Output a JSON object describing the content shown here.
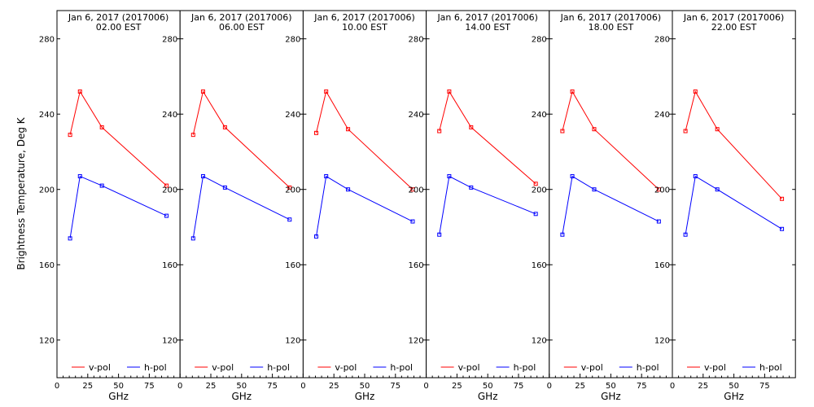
{
  "figure": {
    "ylabel": "Brightness Temperature, Deg K",
    "xlabel": "GHz"
  },
  "chart_data": [
    {
      "type": "line",
      "title": "Jan  6, 2017 (2017006)",
      "subtitle": "02.00 EST",
      "xlabel": "GHz",
      "ylabel": "Brightness Temperature, Deg K",
      "xlim": [
        0,
        100
      ],
      "ylim": [
        100,
        295
      ],
      "xticks": [
        0,
        25,
        50,
        75
      ],
      "yticks": [
        120,
        160,
        200,
        240,
        280
      ],
      "legend": "bottom",
      "grid": false,
      "series": [
        {
          "name": "v-pol",
          "color": "#ff0000",
          "x": [
            10.65,
            18.7,
            36.5,
            89
          ],
          "y": [
            229,
            252,
            233,
            202
          ]
        },
        {
          "name": "h-pol",
          "color": "#0000ff",
          "x": [
            10.65,
            18.7,
            36.5,
            89
          ],
          "y": [
            174,
            207,
            202,
            186
          ]
        }
      ]
    },
    {
      "type": "line",
      "title": "Jan  6, 2017 (2017006)",
      "subtitle": "06.00 EST",
      "xlabel": "GHz",
      "xlim": [
        0,
        100
      ],
      "ylim": [
        100,
        295
      ],
      "xticks": [
        0,
        25,
        50,
        75
      ],
      "yticks": [
        120,
        160,
        200,
        240,
        280
      ],
      "legend": "bottom",
      "grid": false,
      "series": [
        {
          "name": "v-pol",
          "color": "#ff0000",
          "x": [
            10.65,
            18.7,
            36.5,
            89
          ],
          "y": [
            229,
            252,
            233,
            201
          ]
        },
        {
          "name": "h-pol",
          "color": "#0000ff",
          "x": [
            10.65,
            18.7,
            36.5,
            89
          ],
          "y": [
            174,
            207,
            201,
            184
          ]
        }
      ]
    },
    {
      "type": "line",
      "title": "Jan  6, 2017 (2017006)",
      "subtitle": "10.00 EST",
      "xlabel": "GHz",
      "xlim": [
        0,
        100
      ],
      "ylim": [
        100,
        295
      ],
      "xticks": [
        0,
        25,
        50,
        75
      ],
      "yticks": [
        120,
        160,
        200,
        240,
        280
      ],
      "legend": "bottom",
      "grid": false,
      "series": [
        {
          "name": "v-pol",
          "color": "#ff0000",
          "x": [
            10.65,
            18.7,
            36.5,
            89
          ],
          "y": [
            230,
            252,
            232,
            200
          ]
        },
        {
          "name": "h-pol",
          "color": "#0000ff",
          "x": [
            10.65,
            18.7,
            36.5,
            89
          ],
          "y": [
            175,
            207,
            200,
            183
          ]
        }
      ]
    },
    {
      "type": "line",
      "title": "Jan  6, 2017 (2017006)",
      "subtitle": "14.00 EST",
      "xlabel": "GHz",
      "xlim": [
        0,
        100
      ],
      "ylim": [
        100,
        295
      ],
      "xticks": [
        0,
        25,
        50,
        75
      ],
      "yticks": [
        120,
        160,
        200,
        240,
        280
      ],
      "legend": "bottom",
      "grid": false,
      "series": [
        {
          "name": "v-pol",
          "color": "#ff0000",
          "x": [
            10.65,
            18.7,
            36.5,
            89
          ],
          "y": [
            231,
            252,
            233,
            203
          ]
        },
        {
          "name": "h-pol",
          "color": "#0000ff",
          "x": [
            10.65,
            18.7,
            36.5,
            89
          ],
          "y": [
            176,
            207,
            201,
            187
          ]
        }
      ]
    },
    {
      "type": "line",
      "title": "Jan  6, 2017 (2017006)",
      "subtitle": "18.00 EST",
      "xlabel": "GHz",
      "xlim": [
        0,
        100
      ],
      "ylim": [
        100,
        295
      ],
      "xticks": [
        0,
        25,
        50,
        75
      ],
      "yticks": [
        120,
        160,
        200,
        240,
        280
      ],
      "legend": "bottom",
      "grid": false,
      "series": [
        {
          "name": "v-pol",
          "color": "#ff0000",
          "x": [
            10.65,
            18.7,
            36.5,
            89
          ],
          "y": [
            231,
            252,
            232,
            200
          ]
        },
        {
          "name": "h-pol",
          "color": "#0000ff",
          "x": [
            10.65,
            18.7,
            36.5,
            89
          ],
          "y": [
            176,
            207,
            200,
            183
          ]
        }
      ]
    },
    {
      "type": "line",
      "title": "Jan  6, 2017 (2017006)",
      "subtitle": "22.00 EST",
      "xlabel": "GHz",
      "xlim": [
        0,
        100
      ],
      "ylim": [
        100,
        295
      ],
      "xticks": [
        0,
        25,
        50,
        75
      ],
      "yticks": [
        120,
        160,
        200,
        240,
        280
      ],
      "legend": "bottom",
      "grid": false,
      "series": [
        {
          "name": "v-pol",
          "color": "#ff0000",
          "x": [
            10.65,
            18.7,
            36.5,
            89
          ],
          "y": [
            231,
            252,
            232,
            195
          ]
        },
        {
          "name": "h-pol",
          "color": "#0000ff",
          "x": [
            10.65,
            18.7,
            36.5,
            89
          ],
          "y": [
            176,
            207,
            200,
            179
          ]
        }
      ]
    }
  ]
}
